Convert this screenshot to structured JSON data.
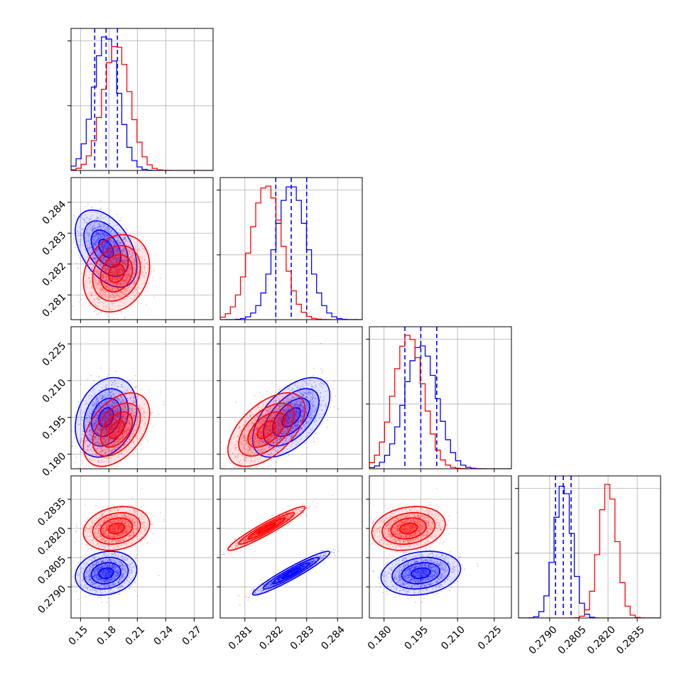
{
  "chart_data": {
    "type": "corner",
    "parameters": [
      {
        "range": [
          0.14,
          0.29
        ],
        "ticks": [
          "0.15",
          "0.18",
          "0.21",
          "0.24",
          "0.27"
        ]
      },
      {
        "range": [
          0.2802,
          0.2848
        ],
        "ticks": [
          "0.281",
          "0.282",
          "0.283",
          "0.284"
        ]
      },
      {
        "range": [
          0.174,
          0.232
        ],
        "ticks": [
          "0.180",
          "0.195",
          "0.210",
          "0.225"
        ]
      },
      {
        "range": [
          0.2774,
          0.2847
        ],
        "ticks": [
          "0.2790",
          "0.2805",
          "0.2820",
          "0.2835"
        ]
      }
    ],
    "series": [
      {
        "color": "#0000ff",
        "means": [
          0.177,
          0.2825,
          0.195,
          0.2797
        ],
        "sds": [
          0.013,
          0.0005,
          0.0065,
          0.00045
        ],
        "correlations": {
          "1-0": -0.45,
          "2-0": 0.25,
          "2-1": 0.55,
          "3-0": 0.15,
          "3-1": 0.95,
          "3-2": 0.2
        },
        "quantile_lines": {
          "0": [
            0.165,
            0.177,
            0.189
          ],
          "1": [
            0.282,
            0.2825,
            0.283
          ],
          "2": [
            0.1885,
            0.195,
            0.2015
          ],
          "3": [
            0.2793,
            0.2797,
            0.2801
          ]
        }
      },
      {
        "color": "#ff0000",
        "means": [
          0.188,
          0.2817,
          0.19,
          0.282
        ],
        "sds": [
          0.014,
          0.0005,
          0.006,
          0.00045
        ],
        "correlations": {
          "1-0": 0.2,
          "2-0": 0.45,
          "2-1": 0.55,
          "3-0": 0.2,
          "3-1": 0.95,
          "3-2": 0.2
        },
        "quantile_lines": {}
      }
    ]
  }
}
